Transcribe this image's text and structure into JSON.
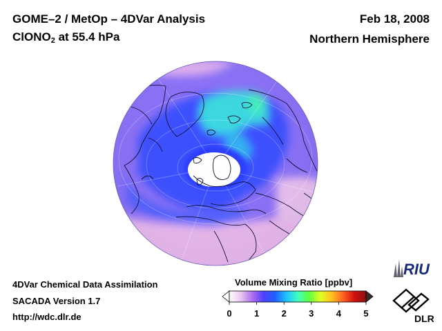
{
  "header": {
    "title": "GOME–2 / MetOp – 4DVar Analysis",
    "species_prefix": "ClONO",
    "species_subscript": "2",
    "species_suffix": " at 55.4 hPa",
    "date": "Feb 18, 2008",
    "region": "Northern Hemisphere"
  },
  "footer": {
    "line1": "4DVar Chemical Data Assimilation",
    "line2": "SACADA Version 1.7",
    "line3": "http://wdc.dlr.de"
  },
  "colorbar": {
    "title": "Volume Mixing Ratio [ppbv]",
    "ticks": [
      "0",
      "1",
      "2",
      "3",
      "4",
      "5"
    ],
    "range": [
      0,
      5
    ],
    "colors": [
      "#ffffff",
      "#e8c8f0",
      "#b070f0",
      "#5040ff",
      "#2060ff",
      "#20c0ff",
      "#40ffc0",
      "#60ff40",
      "#e0ff20",
      "#ffc020",
      "#ff6020",
      "#d01010",
      "#901010"
    ]
  },
  "logos": {
    "riu": "RIU",
    "dlr": "DLR"
  },
  "map": {
    "projection": "orthographic",
    "hemisphere": "Northern Hemisphere",
    "colors": {
      "background_field": "#8a70f8",
      "band": "#3a50ff",
      "high": "#40e8c0",
      "low": "#f0d0ee",
      "vortex_core": "#ffffff"
    }
  }
}
